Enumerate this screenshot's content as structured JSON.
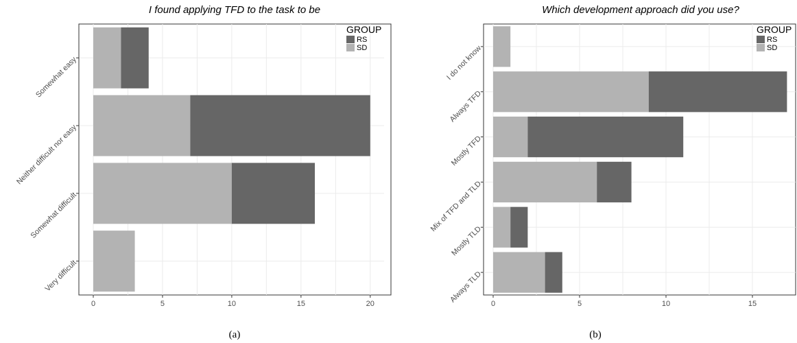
{
  "chart_data": [
    {
      "type": "bar",
      "orientation": "horizontal",
      "stacked": true,
      "title": "I found applying TFD to the task to be",
      "categories": [
        "Somewhat easy",
        "Neither difficult nor easy",
        "Somewhat difficult",
        "Very difficult"
      ],
      "series": [
        {
          "name": "SD",
          "values": [
            2,
            7,
            10,
            3
          ],
          "color": "#b3b3b3"
        },
        {
          "name": "RS",
          "values": [
            2,
            13,
            6,
            0
          ],
          "color": "#666666"
        }
      ],
      "xlim": [
        0,
        21
      ],
      "xticks": [
        0,
        5,
        10,
        15,
        20
      ],
      "legend": {
        "title": "GROUP",
        "entries": [
          "RS",
          "SD"
        ],
        "placement": "top-right"
      },
      "grid": true,
      "caption": "(a)"
    },
    {
      "type": "bar",
      "orientation": "horizontal",
      "stacked": true,
      "title": "Which development approach did you use?",
      "categories": [
        "I do not know",
        "Always TFD",
        "Mostly TFD",
        "Mix of TFD and TLD",
        "Mostly TLD",
        "Always TLD"
      ],
      "series": [
        {
          "name": "SD",
          "values": [
            1,
            9,
            2,
            6,
            1,
            3
          ],
          "color": "#b3b3b3"
        },
        {
          "name": "RS",
          "values": [
            0,
            8,
            9,
            2,
            1,
            1
          ],
          "color": "#666666"
        }
      ],
      "xlim": [
        0,
        17.5
      ],
      "xticks": [
        0,
        5,
        10,
        15
      ],
      "legend": {
        "title": "GROUP",
        "entries": [
          "RS",
          "SD"
        ],
        "placement": "top-right"
      },
      "grid": true,
      "caption": "(b)"
    }
  ]
}
